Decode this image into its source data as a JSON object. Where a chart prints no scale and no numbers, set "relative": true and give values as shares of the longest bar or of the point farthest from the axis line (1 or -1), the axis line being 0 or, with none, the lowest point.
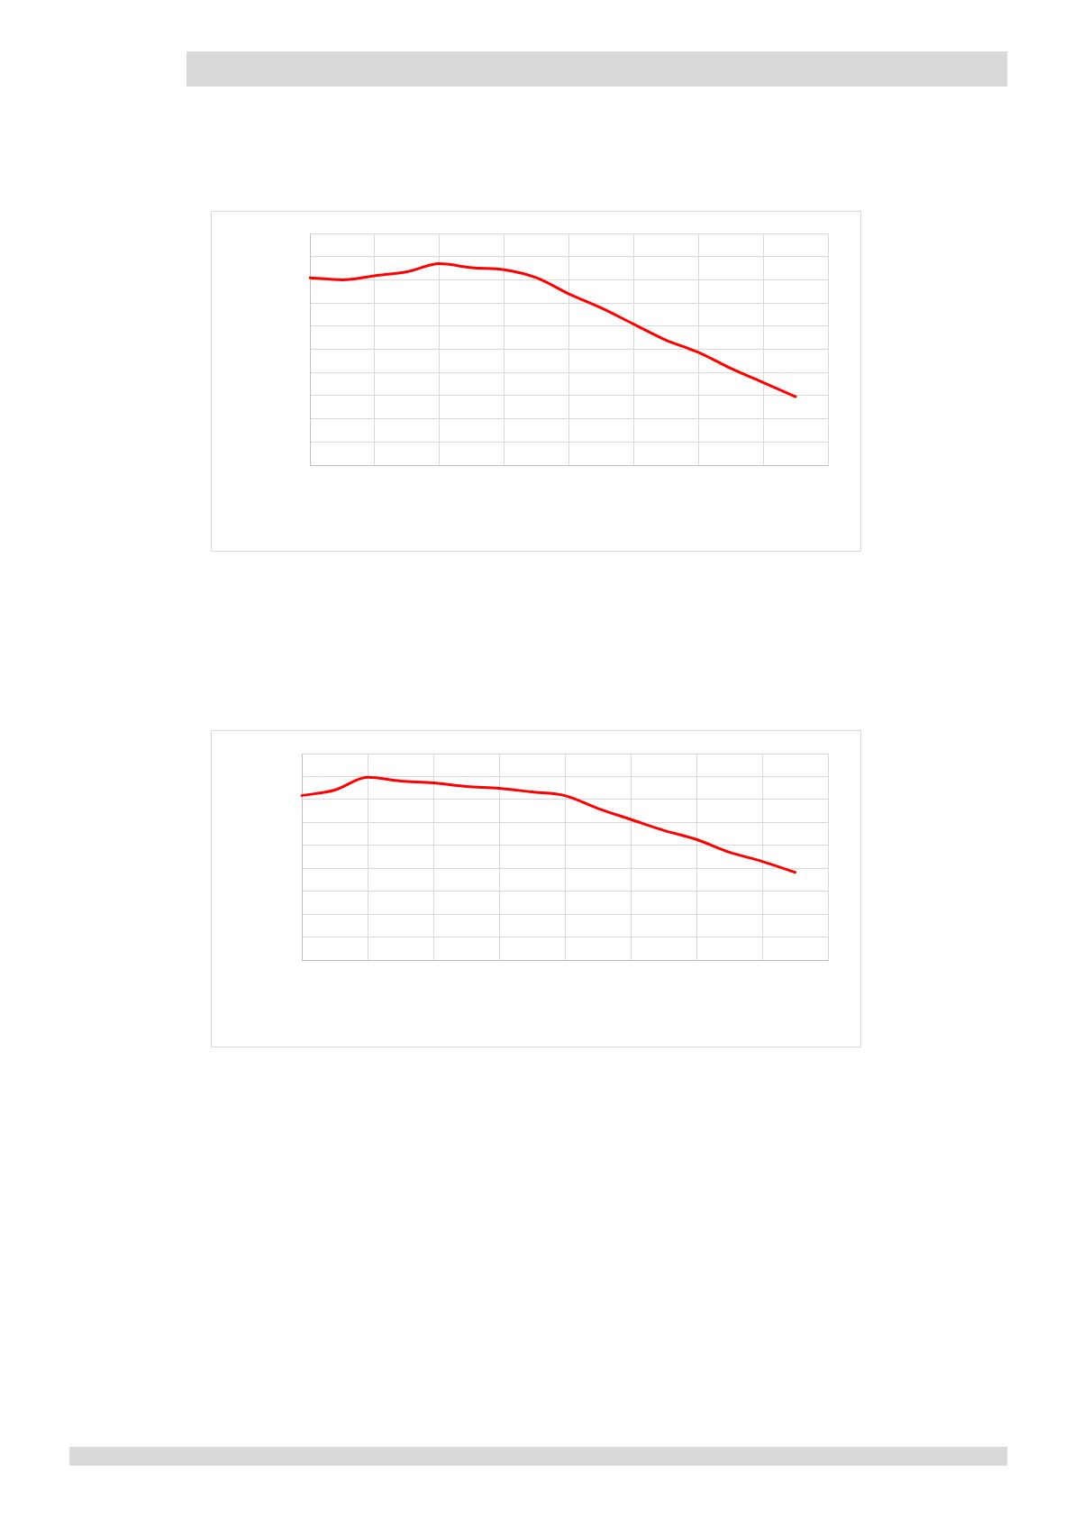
{
  "chart_data": [
    {
      "type": "line",
      "relative": true,
      "grid": true,
      "categories": [
        null,
        null,
        null,
        null,
        null,
        null,
        null,
        null,
        null,
        null,
        null,
        null,
        null,
        null,
        null,
        null,
        null
      ],
      "series": [
        {
          "color": "#ff0000",
          "values": [
            0.93,
            0.92,
            0.94,
            0.96,
            1,
            0.98,
            0.97,
            0.93,
            0.85,
            0.78,
            0.7,
            0.62,
            0.56,
            0.48,
            0.41,
            0.34,
            null
          ]
        }
      ]
    },
    {
      "type": "line",
      "relative": true,
      "grid": true,
      "categories": [
        null,
        null,
        null,
        null,
        null,
        null,
        null,
        null,
        null,
        null,
        null,
        null,
        null,
        null,
        null,
        null,
        null
      ],
      "series": [
        {
          "color": "#ff0000",
          "values": [
            0.9,
            0.93,
            1,
            0.98,
            0.97,
            0.95,
            0.94,
            0.92,
            0.9,
            0.83,
            0.77,
            0.71,
            0.66,
            0.59,
            0.54,
            0.48,
            null
          ]
        }
      ]
    }
  ]
}
